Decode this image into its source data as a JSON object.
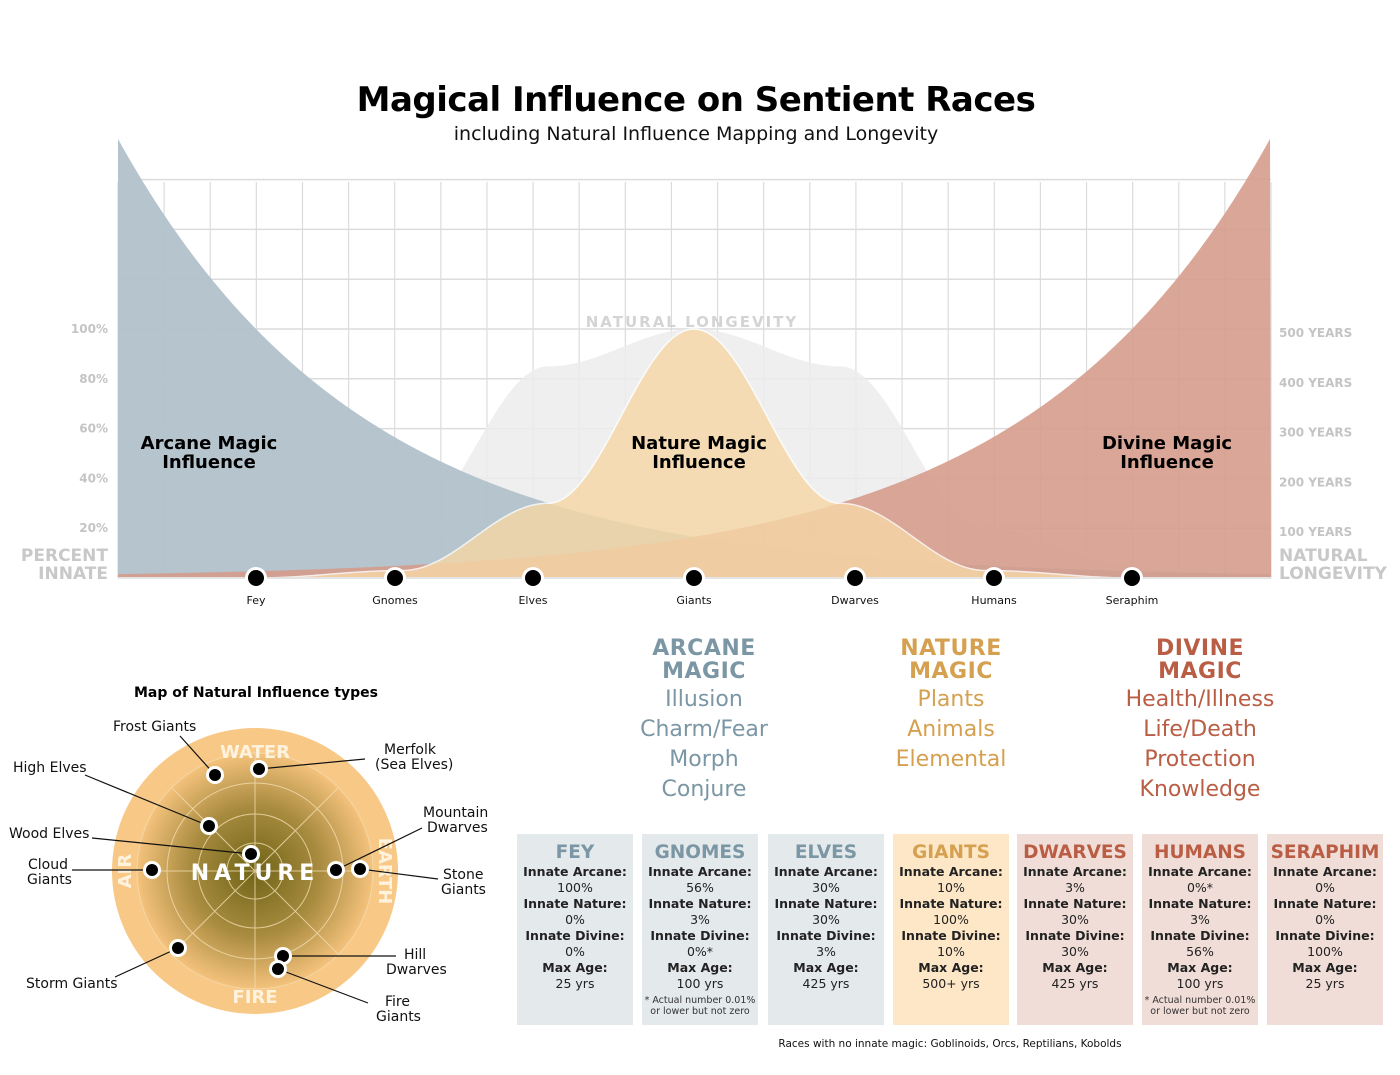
{
  "header": {
    "title": "Magical Influence on Sentient Races",
    "subtitle": "including Natural Influence Mapping and Longevity"
  },
  "chart_data": {
    "type": "area",
    "title": "Magical Influence on Sentient Races",
    "subtitle": "including Natural Influence Mapping and Longevity",
    "categories": [
      "Fey",
      "Gnomes",
      "Elves",
      "Giants",
      "Dwarves",
      "Humans",
      "Seraphim"
    ],
    "series": [
      {
        "name": "Arcane Magic Influence",
        "label_lines": [
          "Arcane Magic",
          "Influence"
        ],
        "values": [
          100,
          56,
          30,
          10,
          3,
          0,
          0
        ],
        "color": "#b1c1ca"
      },
      {
        "name": "Nature Magic Influence",
        "label_lines": [
          "Nature Magic",
          "Influence"
        ],
        "values": [
          0,
          3,
          30,
          100,
          30,
          3,
          0
        ],
        "color": "#f7d7a6"
      },
      {
        "name": "Divine Magic Influence",
        "label_lines": [
          "Divine Magic",
          "Influence"
        ],
        "values": [
          0,
          0,
          3,
          10,
          30,
          56,
          100
        ],
        "color": "#d59c8c"
      },
      {
        "name": "NATURAL LONGEVITY",
        "values": [
          25,
          100,
          425,
          500,
          425,
          100,
          25
        ],
        "unit": "years",
        "color": "#ececec"
      }
    ],
    "y_left": {
      "label_lines": [
        "PERCENT",
        "INNATE"
      ],
      "ticks": [
        "20%",
        "40%",
        "60%",
        "80%",
        "100%"
      ],
      "range": [
        0,
        100
      ]
    },
    "y_right": {
      "label_lines": [
        "NATURAL",
        "LONGEVITY"
      ],
      "ticks": [
        "100 YEARS",
        "200 YEARS",
        "300 YEARS",
        "400 YEARS",
        "500 YEARS"
      ],
      "range": [
        0,
        500
      ]
    },
    "grid": true
  },
  "magic_types": [
    {
      "title": [
        "ARCANE",
        "MAGIC"
      ],
      "items": [
        "Illusion",
        "Charm/Fear",
        "Morph",
        "Conjure"
      ],
      "color": "#7b96a4"
    },
    {
      "title": [
        "NATURE",
        "MAGIC"
      ],
      "items": [
        "Plants",
        "Animals",
        "Elemental"
      ],
      "color": "#d5a04f"
    },
    {
      "title": [
        "DIVINE",
        "MAGIC"
      ],
      "items": [
        "Health/Illness",
        "Life/Death",
        "Protection",
        "Knowledge"
      ],
      "color": "#b95e45"
    }
  ],
  "cards": [
    {
      "name": "FEY",
      "arcane": "100%",
      "nature": "0%",
      "divine": "0%",
      "age": "25 yrs",
      "note": ""
    },
    {
      "name": "GNOMES",
      "arcane": "56%",
      "nature": "3%",
      "divine": "0%*",
      "age": "100 yrs",
      "note": "* Actual number 0.01% or lower but not zero"
    },
    {
      "name": "ELVES",
      "arcane": "30%",
      "nature": "30%",
      "divine": "3%",
      "age": "425 yrs",
      "note": ""
    },
    {
      "name": "GIANTS",
      "arcane": "10%",
      "nature": "100%",
      "divine": "10%",
      "age": "500+ yrs",
      "note": ""
    },
    {
      "name": "DWARVES",
      "arcane": "3%",
      "nature": "30%",
      "divine": "30%",
      "age": "425 yrs",
      "note": ""
    },
    {
      "name": "HUMANS",
      "arcane": "0%*",
      "nature": "3%",
      "divine": "56%",
      "age": "100 yrs",
      "note": "* Actual number 0.01% or lower but not zero"
    },
    {
      "name": "SERAPHIM",
      "arcane": "0%",
      "nature": "0%",
      "divine": "100%",
      "age": "25 yrs",
      "note": ""
    }
  ],
  "card_labels": {
    "arcane": "Innate Arcane:",
    "nature": "Innate Nature:",
    "divine": "Innate Divine:",
    "age": "Max Age:"
  },
  "footnote": "Races with no innate magic: Goblinoids, Orcs, Reptilians, Kobolds",
  "map": {
    "title": "Map of Natural Influence types",
    "center": "NATURE",
    "elements": {
      "top": "WATER",
      "right": "EARTH",
      "bottom": "FIRE",
      "left": "AIR"
    },
    "races": [
      "Frost Giants",
      "Merfolk\n(Sea Elves)",
      "High Elves",
      "Wood Elves",
      "Cloud\nGiants",
      "Mountain\nDwarves",
      "Stone\nGiants",
      "Storm Giants",
      "Hill\nDwarves",
      "Fire\nGiants"
    ],
    "labels": {
      "frost": "Frost Giants",
      "merfolk1": "Merfolk",
      "merfolk2": "(Sea Elves)",
      "high": "High Elves",
      "wood": "Wood Elves",
      "cloud1": "Cloud",
      "cloud2": "Giants",
      "mountain1": "Mountain",
      "mountain2": "Dwarves",
      "stone1": "Stone",
      "stone2": "Giants",
      "storm": "Storm Giants",
      "hill1": "Hill",
      "hill2": "Dwarves",
      "fire1": "Fire",
      "fire2": "Giants"
    }
  }
}
